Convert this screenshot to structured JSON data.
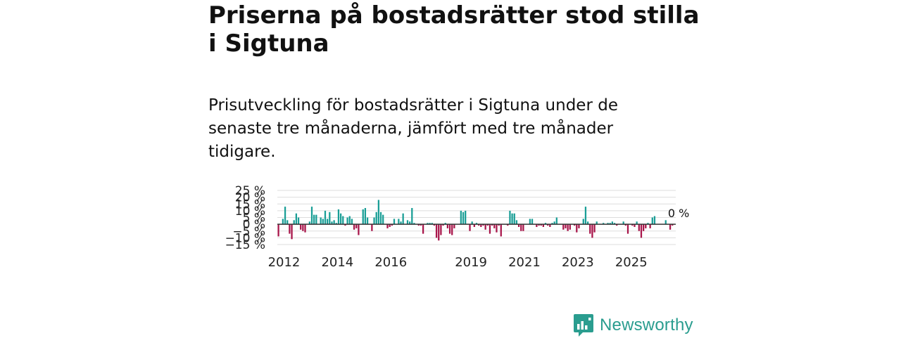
{
  "title": "Priserna på bostadsrätter stod stilla i Sigtuna",
  "subtitle": "Prisutveckling för bostadsrätter i Sigtuna under de senaste tre månaderna, jämfört med tre månader tidigare.",
  "brand": {
    "name": "Newsworthy",
    "icon": "newsworthy-logo-icon"
  },
  "colors": {
    "positive": "#1a9e96",
    "negative": "#a8154a",
    "grid": "#dddddd",
    "zero_line": "#333333"
  },
  "chart_data": {
    "type": "bar",
    "title": "Prisutveckling för bostadsrätter i Sigtuna",
    "xlabel": "",
    "ylabel": "",
    "ylim": [
      -15,
      25
    ],
    "yticks": [
      25,
      20,
      15,
      10,
      5,
      0,
      -5,
      -10,
      -15
    ],
    "ytick_labels": [
      "25 %",
      "20 %",
      "15 %",
      "10 %",
      "5 %",
      "0 %",
      "−5 %",
      "−10 %",
      "−15 %"
    ],
    "xticks": [
      2012,
      2014,
      2016,
      2019,
      2021,
      2023,
      2025
    ],
    "xtick_labels": [
      "2012",
      "2014",
      "2016",
      "2019",
      "2021",
      "2023",
      "2025"
    ],
    "x_start": 2011.75,
    "months_per_bar": 1,
    "end_label": "0 %",
    "values": [
      -9,
      0,
      4,
      13,
      3,
      -7,
      -11,
      3,
      8,
      5,
      -4,
      -5,
      -6,
      0,
      2,
      13,
      7,
      7,
      0,
      5,
      4,
      10,
      4,
      9,
      2,
      3,
      1,
      11,
      8,
      6,
      -1,
      5,
      6,
      4,
      -4,
      -3,
      -8,
      0,
      11,
      12,
      5,
      0,
      -5,
      5,
      9,
      18,
      9,
      7,
      0,
      -3,
      -2,
      -1,
      4,
      0,
      4,
      2,
      8,
      0,
      3,
      2,
      12,
      1,
      0,
      -1,
      -1,
      -7,
      0,
      1,
      1,
      1,
      -1,
      -10,
      -12,
      -8,
      -1,
      1,
      -3,
      -7,
      -8,
      -3,
      0,
      0,
      10,
      9,
      10,
      0,
      -5,
      2,
      -2,
      1,
      -1,
      -2,
      -1,
      -4,
      -1,
      -7,
      -1,
      -3,
      -6,
      -1,
      -9,
      0,
      0,
      -1,
      10,
      8,
      8,
      3,
      -2,
      -5,
      -5,
      0,
      0,
      4,
      4,
      0,
      -2,
      -1,
      -1,
      -2,
      1,
      -1,
      -2,
      1,
      2,
      5,
      0,
      0,
      -4,
      -3,
      -5,
      -4,
      0,
      -1,
      -6,
      -3,
      0,
      4,
      13,
      2,
      -7,
      -10,
      -6,
      2,
      0,
      0,
      1,
      0,
      1,
      1,
      2,
      1,
      -1,
      0,
      0,
      2,
      -1,
      -7,
      0,
      -1,
      -2,
      2,
      -5,
      -10,
      -5,
      -3,
      1,
      -3,
      5,
      6,
      0,
      0,
      0,
      0,
      3,
      0,
      -4,
      -1,
      0
    ]
  }
}
